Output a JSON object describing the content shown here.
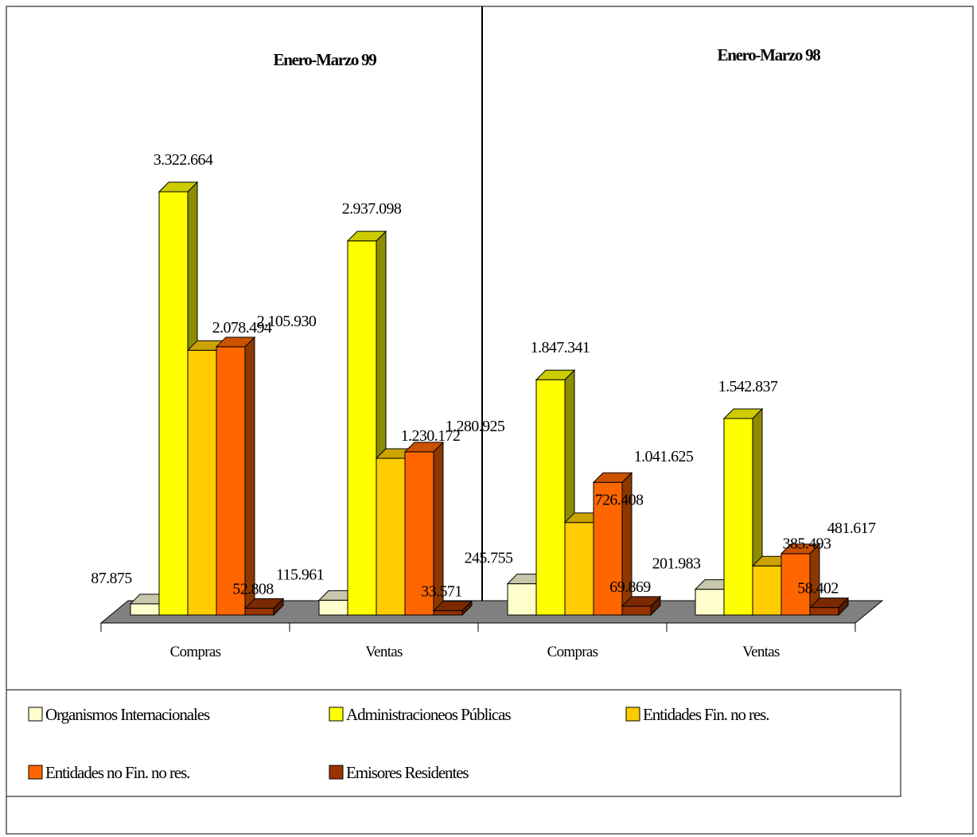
{
  "chart_data": {
    "type": "bar",
    "style": "3d-clustered-column",
    "panels": [
      {
        "title": "Enero-Marzo 99"
      },
      {
        "title": "Enero-Marzo 98"
      }
    ],
    "categories": [
      "Compras",
      "Ventas",
      "Compras",
      "Ventas"
    ],
    "series": [
      {
        "name": "Organismos Internacionales",
        "color": "#FFFFCC",
        "values": [
          87875,
          115961,
          245755,
          201983
        ]
      },
      {
        "name": "Administracioneos Públicas",
        "color": "#FFFF00",
        "values": [
          3322664,
          2937098,
          1847341,
          1542837
        ]
      },
      {
        "name": "Entidades Fin. no res.",
        "color": "#FFCC00",
        "values": [
          2078494,
          1230172,
          726408,
          385493
        ]
      },
      {
        "name": "Entidades  no Fin. no res.",
        "color": "#FF6600",
        "values": [
          2105930,
          1280925,
          1041625,
          481617
        ]
      },
      {
        "name": "Emisores Residentes",
        "color": "#993300",
        "values": [
          52808,
          33571,
          69869,
          58402
        ]
      }
    ],
    "data_labels": [
      [
        "87.875",
        "3.322.664",
        "2.078.494",
        "2.105.930",
        "52.808"
      ],
      [
        "115.961",
        "2.937.098",
        "1.230.172",
        "1.280.925",
        "33.571"
      ],
      [
        "245.755",
        "1.847.341",
        "726.408",
        "1.041.625",
        "69.869"
      ],
      [
        "201.983",
        "1.542.837",
        "385.493",
        "481.617",
        "58.402"
      ]
    ],
    "ylim": [
      0,
      3322664
    ],
    "legend_position": "bottom",
    "floor_color": "#808080"
  }
}
